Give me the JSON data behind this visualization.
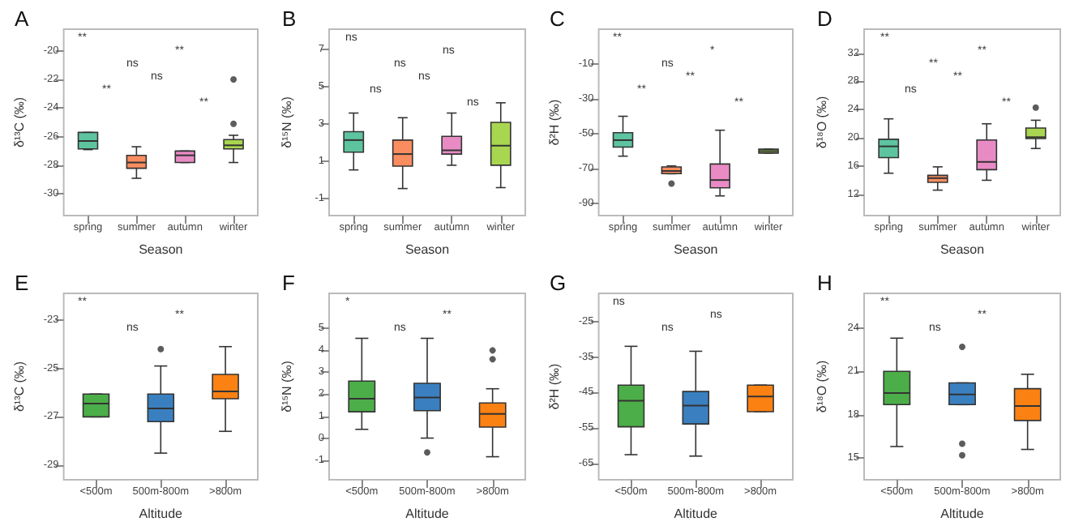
{
  "chart_data": [
    {
      "type": "box",
      "title": "A",
      "xlabel": "Season",
      "ylabel": "δ¹³C (‰)",
      "categories": [
        "spring",
        "summer",
        "autumn",
        "winter"
      ],
      "colors": [
        "#5ec4a0",
        "#f98d5f",
        "#e88bc4",
        "#a9d650"
      ],
      "ylim": [
        -31.5,
        -18.5
      ],
      "yticks": [
        -20,
        -22,
        -24,
        -26,
        -28,
        -30
      ],
      "boxes": [
        {
          "low": -26.9,
          "q1": -26.85,
          "median": -26.3,
          "q3": -25.7,
          "high": -25.7
        },
        {
          "low": -28.9,
          "q1": -28.2,
          "median": -27.8,
          "q3": -27.3,
          "high": -26.7
        },
        {
          "low": -27.8,
          "q1": -27.8,
          "median": -27.3,
          "q3": -27.0,
          "high": -27.0
        },
        {
          "low": -27.8,
          "q1": -26.85,
          "median": -26.6,
          "q3": -26.2,
          "high": -25.9,
          "outliers": [
            -25.1,
            -22.0
          ]
        }
      ],
      "annotations": [
        "**",
        "**",
        "ns",
        "ns",
        "**",
        "**"
      ]
    },
    {
      "type": "box",
      "title": "B",
      "xlabel": "Season",
      "ylabel": "δ¹⁵N (‰)",
      "categories": [
        "spring",
        "summer",
        "autumn",
        "winter"
      ],
      "colors": [
        "#5ec4a0",
        "#f98d5f",
        "#e88bc4",
        "#a9d650"
      ],
      "ylim": [
        -1.9,
        8.1
      ],
      "yticks": [
        7,
        5,
        3,
        1,
        -1
      ],
      "boxes": [
        {
          "low": 0.55,
          "q1": 1.5,
          "median": 2.15,
          "q3": 2.6,
          "high": 3.6
        },
        {
          "low": -0.45,
          "q1": 0.75,
          "median": 1.4,
          "q3": 2.15,
          "high": 3.35
        },
        {
          "low": 0.8,
          "q1": 1.4,
          "median": 1.6,
          "q3": 2.35,
          "high": 3.6
        },
        {
          "low": -0.4,
          "q1": 0.8,
          "median": 1.85,
          "q3": 3.1,
          "high": 4.15
        }
      ],
      "annotations": [
        "ns",
        "ns",
        "ns",
        "ns",
        "ns",
        "ns"
      ]
    },
    {
      "type": "box",
      "title": "C",
      "xlabel": "Season",
      "ylabel": "δ²H (‰)",
      "categories": [
        "spring",
        "summer",
        "autumn",
        "winter"
      ],
      "colors": [
        "#5ec4a0",
        "#f98d5f",
        "#e88bc4",
        "#a9d650"
      ],
      "ylim": [
        -97,
        10
      ],
      "yticks": [
        -10,
        -30,
        -50,
        -70,
        -90
      ],
      "boxes": [
        {
          "low": -62.9,
          "q1": -57.7,
          "median": -53.7,
          "q3": -49.4,
          "high": -40
        },
        {
          "low": -73,
          "q1": -72.9,
          "median": -71.4,
          "q3": -69.1,
          "high": -68.5,
          "outliers": [
            -78.6
          ]
        },
        {
          "low": -85.7,
          "q1": -81.1,
          "median": -76.6,
          "q3": -67.4,
          "high": -48
        },
        {
          "low": -61.1,
          "q1": -61.1,
          "median": -60,
          "q3": -58.9,
          "high": -58.9
        }
      ],
      "annotations": [
        "**",
        "*",
        "ns",
        "**",
        "**",
        "**"
      ]
    },
    {
      "type": "box",
      "title": "D",
      "xlabel": "Season",
      "ylabel": "δ¹⁸O (‰)",
      "categories": [
        "spring",
        "summer",
        "autumn",
        "winter"
      ],
      "colors": [
        "#5ec4a0",
        "#f98d5f",
        "#e88bc4",
        "#a9d650"
      ],
      "ylim": [
        9,
        35.4
      ],
      "yticks": [
        32,
        28,
        24,
        20,
        16,
        12
      ],
      "boxes": [
        {
          "low": 15,
          "q1": 17.2,
          "median": 18.8,
          "q3": 19.8,
          "high": 22.7
        },
        {
          "low": 12.6,
          "q1": 13.7,
          "median": 14.3,
          "q3": 14.7,
          "high": 15.9
        },
        {
          "low": 14,
          "q1": 15.5,
          "median": 16.6,
          "q3": 19.7,
          "high": 22
        },
        {
          "low": 18.5,
          "q1": 19.9,
          "median": 20.1,
          "q3": 21.4,
          "high": 22.5,
          "outliers": [
            24.3
          ]
        }
      ],
      "annotations": [
        "**",
        "**",
        "**",
        "**",
        "ns",
        "**"
      ]
    },
    {
      "type": "box",
      "title": "E",
      "xlabel": "Altitude",
      "ylabel": "δ¹³C (‰)",
      "categories": [
        "<500m",
        "500m-800m",
        ">800m"
      ],
      "colors": [
        "#4cae48",
        "#3a80c0",
        "#fb8112"
      ],
      "ylim": [
        -29.6,
        -21.9
      ],
      "yticks": [
        -23,
        -25,
        -27,
        -29
      ],
      "boxes": [
        {
          "low": -27.0,
          "q1": -27.0,
          "median": -26.45,
          "q3": -26.06,
          "high": -26.06
        },
        {
          "low": -28.5,
          "q1": -27.2,
          "median": -26.65,
          "q3": -26.06,
          "high": -24.9,
          "outliers": [
            -24.2
          ]
        },
        {
          "low": -27.6,
          "q1": -26.25,
          "median": -25.95,
          "q3": -25.25,
          "high": -24.1
        }
      ],
      "annotations": [
        "**",
        "**",
        "ns"
      ]
    },
    {
      "type": "box",
      "title": "F",
      "xlabel": "Altitude",
      "ylabel": "δ¹⁵N (‰)",
      "categories": [
        "<500m",
        "500m-800m",
        ">800m"
      ],
      "colors": [
        "#4cae48",
        "#3a80c0",
        "#fb8112"
      ],
      "ylim": [
        -1.9,
        6.6
      ],
      "yticks": [
        5,
        4,
        3,
        2,
        1,
        0,
        -1
      ],
      "boxes": [
        {
          "low": 0.4,
          "q1": 1.2,
          "median": 1.8,
          "q3": 2.6,
          "high": 4.55
        },
        {
          "low": 0,
          "q1": 1.25,
          "median": 1.85,
          "q3": 2.5,
          "high": 4.55,
          "outliers": [
            -0.65
          ]
        },
        {
          "low": -0.85,
          "q1": 0.5,
          "median": 1.1,
          "q3": 1.6,
          "high": 2.25,
          "outliers": [
            4.0,
            3.6
          ]
        }
      ],
      "annotations": [
        "*",
        "**",
        "ns"
      ]
    },
    {
      "type": "box",
      "title": "G",
      "xlabel": "Altitude",
      "ylabel": "δ²H (‰)",
      "categories": [
        "<500m",
        "500m-800m",
        ">800m"
      ],
      "colors": [
        "#4cae48",
        "#3a80c0",
        "#fb8112"
      ],
      "ylim": [
        -69.7,
        -16.9
      ],
      "yticks": [
        -25,
        -35,
        -45,
        -55,
        -65
      ],
      "boxes": [
        {
          "low": -62.6,
          "q1": -54.7,
          "median": -47.3,
          "q3": -42.9,
          "high": -31.9
        },
        {
          "low": -63,
          "q1": -53.9,
          "median": -48.7,
          "q3": -44.7,
          "high": -33.3
        },
        {
          "low": -50.4,
          "q1": -50.4,
          "median": -46.1,
          "q3": -42.9,
          "high": -42.9
        }
      ],
      "annotations": [
        "ns",
        "ns",
        "ns"
      ]
    },
    {
      "type": "box",
      "title": "H",
      "xlabel": "Altitude",
      "ylabel": "δ¹⁸O (‰)",
      "categories": [
        "<500m",
        "500m-800m",
        ">800m"
      ],
      "colors": [
        "#4cae48",
        "#3a80c0",
        "#fb8112"
      ],
      "ylim": [
        13.5,
        26.4
      ],
      "yticks": [
        24,
        21,
        18,
        15
      ],
      "boxes": [
        {
          "low": 15.8,
          "q1": 18.7,
          "median": 19.5,
          "q3": 21.0,
          "high": 23.3
        },
        {
          "low": 18.7,
          "q1": 18.7,
          "median": 19.4,
          "q3": 20.2,
          "high": 20.2,
          "outliers": [
            22.7,
            16.0,
            15.2
          ]
        },
        {
          "low": 15.6,
          "q1": 17.6,
          "median": 18.6,
          "q3": 19.8,
          "high": 20.8
        }
      ],
      "annotations": [
        "**",
        "**",
        "ns"
      ]
    }
  ]
}
